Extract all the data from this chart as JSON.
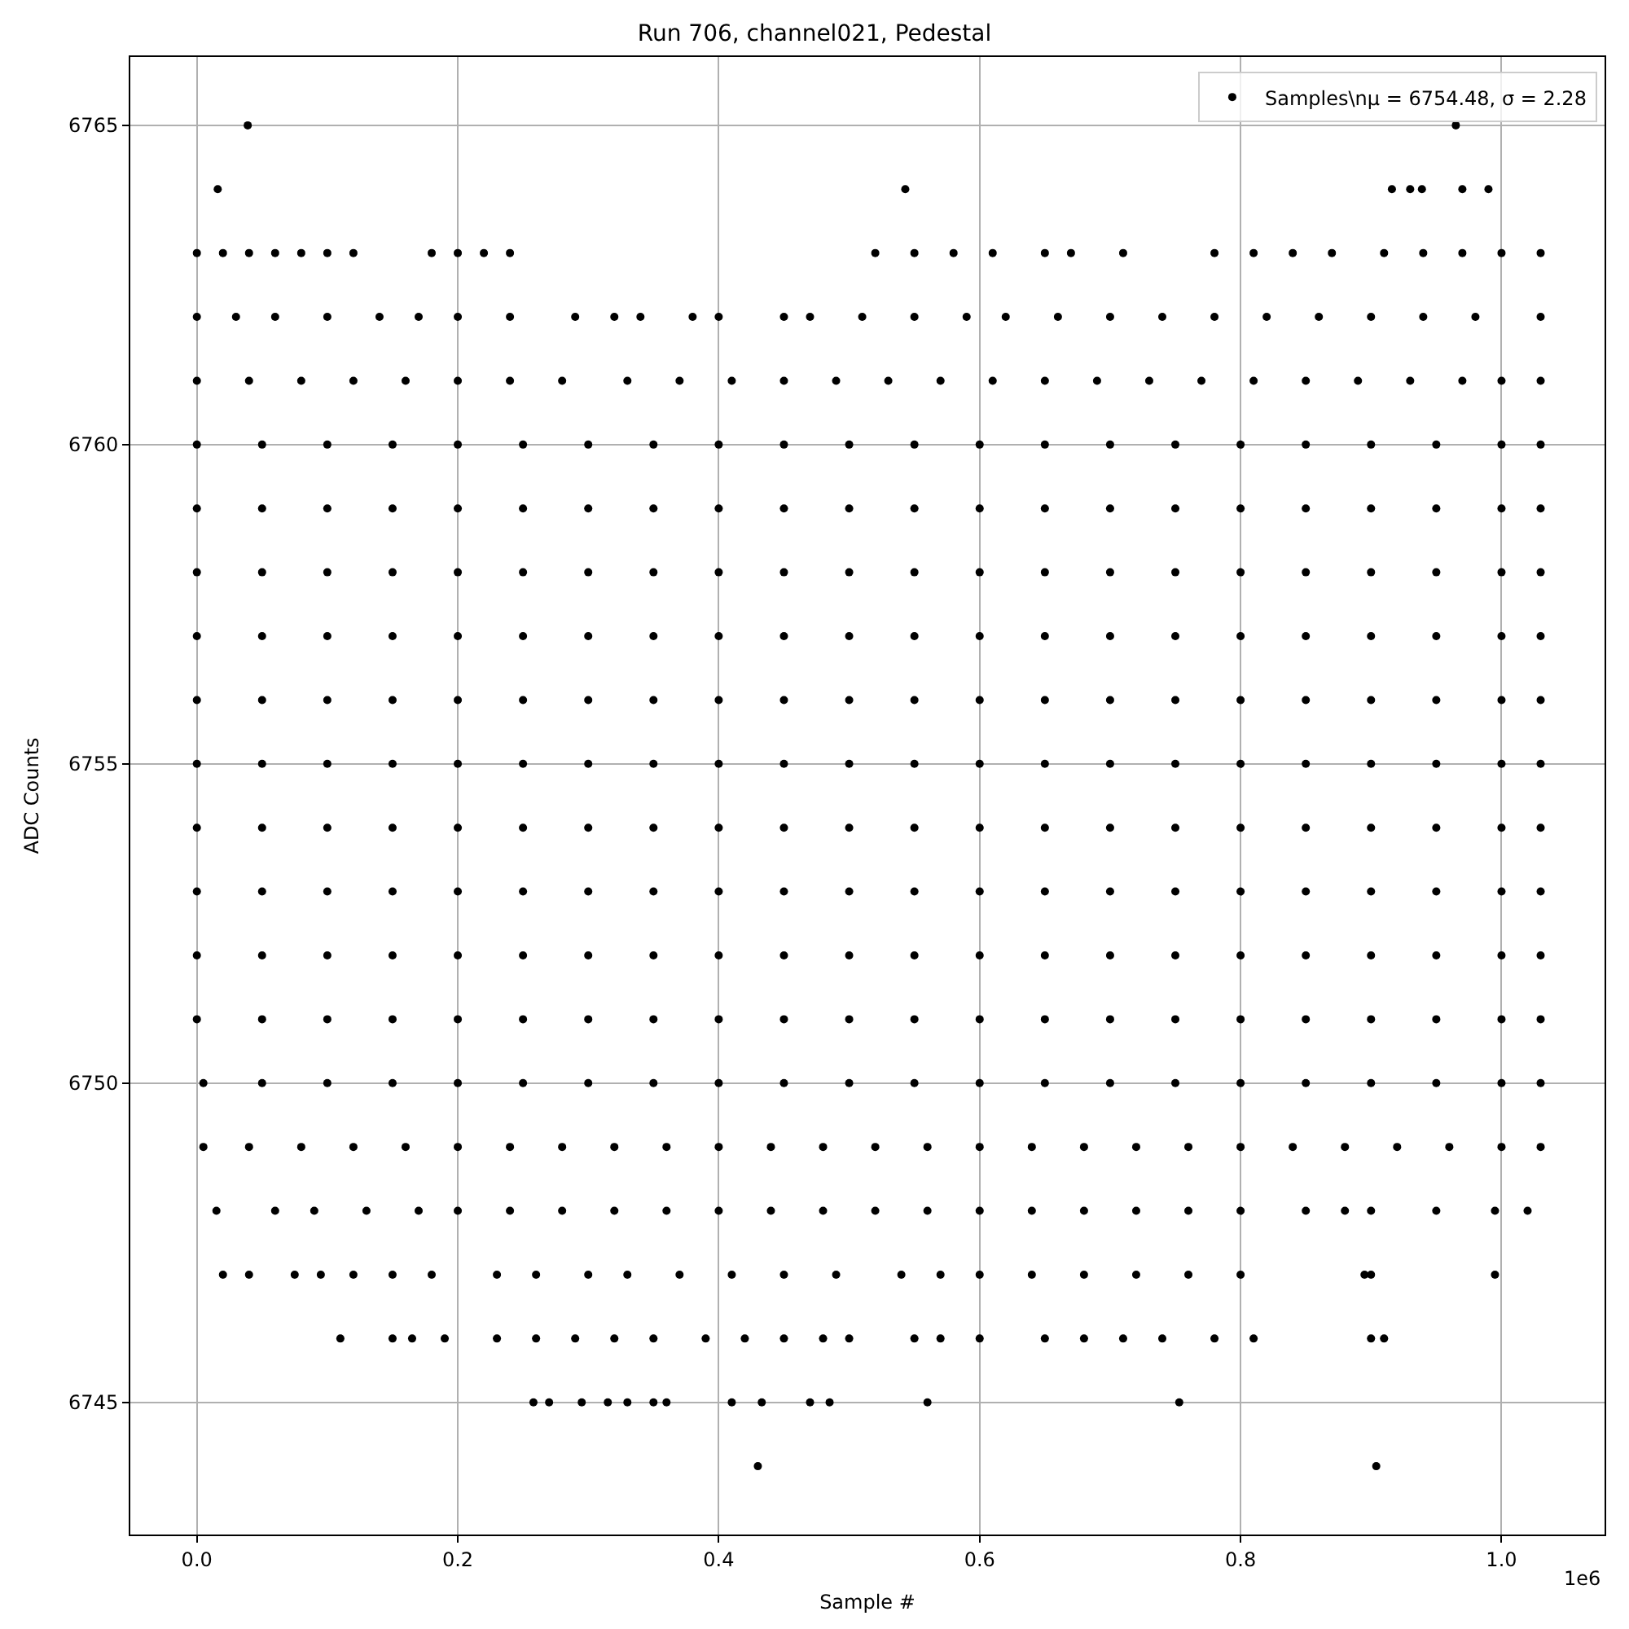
{
  "chart_data": {
    "type": "scatter",
    "title": "Run 706, channel021, Pedestal",
    "xlabel": "Sample #",
    "ylabel": "ADC Counts",
    "annotations": [
      "1e6"
    ],
    "xlim": [
      -0.051,
      1.079
    ],
    "ylim": [
      6742.93,
      6766.07
    ],
    "xticks": [
      {
        "value": 0,
        "label": "0.0"
      },
      0.2,
      0.4,
      0.6,
      0.8,
      {
        "value": 1,
        "label": "1.0"
      }
    ],
    "yticks": [
      6745,
      6750,
      6755,
      6760,
      6765
    ],
    "grid": true,
    "legend": "top right",
    "marker": "circle",
    "series": [
      {
        "name": "Samples\\nμ = 6754.48, σ = 2.28",
        "color": "#000000",
        "x": [
          0.039,
          0.965,
          0.016,
          0.543,
          0.916,
          0.93,
          0.939,
          0.97,
          0.99,
          0,
          0.02,
          0.04,
          0.06,
          0.08,
          0.1,
          0.12,
          0.18,
          0.2,
          0.22,
          0.24,
          0.52,
          0.55,
          0.58,
          0.61,
          0.65,
          0.67,
          0.71,
          0.78,
          0.81,
          0.84,
          0.87,
          0.91,
          0.94,
          0.97,
          1.0,
          1.03,
          0,
          0.03,
          0.06,
          0.1,
          0.14,
          0.17,
          0.2,
          0.24,
          0.29,
          0.32,
          0.34,
          0.38,
          0.4,
          0.45,
          0.47,
          0.51,
          0.55,
          0.59,
          0.62,
          0.66,
          0.7,
          0.74,
          0.78,
          0.82,
          0.86,
          0.9,
          0.94,
          0.98,
          1.03,
          0,
          0.04,
          0.08,
          0.12,
          0.16,
          0.2,
          0.24,
          0.28,
          0.33,
          0.37,
          0.41,
          0.45,
          0.49,
          0.53,
          0.57,
          0.61,
          0.65,
          0.69,
          0.73,
          0.77,
          0.81,
          0.85,
          0.89,
          0.93,
          0.97,
          1.0,
          1.03,
          0,
          0.05,
          0.1,
          0.15,
          0.2,
          0.25,
          0.3,
          0.35,
          0.4,
          0.45,
          0.5,
          0.55,
          0.6,
          0.65,
          0.7,
          0.75,
          0.8,
          0.85,
          0.9,
          0.95,
          1.0,
          1.03,
          0,
          0.05,
          0.1,
          0.15,
          0.2,
          0.25,
          0.3,
          0.35,
          0.4,
          0.45,
          0.5,
          0.55,
          0.6,
          0.65,
          0.7,
          0.75,
          0.8,
          0.85,
          0.9,
          0.95,
          1.0,
          1.03,
          0,
          0.05,
          0.1,
          0.15,
          0.2,
          0.25,
          0.3,
          0.35,
          0.4,
          0.45,
          0.5,
          0.55,
          0.6,
          0.65,
          0.7,
          0.75,
          0.8,
          0.85,
          0.9,
          0.95,
          1.0,
          1.03,
          0,
          0.05,
          0.1,
          0.15,
          0.2,
          0.25,
          0.3,
          0.35,
          0.4,
          0.45,
          0.5,
          0.55,
          0.6,
          0.65,
          0.7,
          0.75,
          0.8,
          0.85,
          0.9,
          0.95,
          1.0,
          1.03,
          0,
          0.05,
          0.1,
          0.15,
          0.2,
          0.25,
          0.3,
          0.35,
          0.4,
          0.45,
          0.5,
          0.55,
          0.6,
          0.65,
          0.7,
          0.75,
          0.8,
          0.85,
          0.9,
          0.95,
          1.0,
          1.03,
          0,
          0.05,
          0.1,
          0.15,
          0.2,
          0.25,
          0.3,
          0.35,
          0.4,
          0.45,
          0.5,
          0.55,
          0.6,
          0.65,
          0.7,
          0.75,
          0.8,
          0.85,
          0.9,
          0.95,
          1.0,
          1.03,
          0,
          0.05,
          0.1,
          0.15,
          0.2,
          0.25,
          0.3,
          0.35,
          0.4,
          0.45,
          0.5,
          0.55,
          0.6,
          0.65,
          0.7,
          0.75,
          0.8,
          0.85,
          0.9,
          0.95,
          1.0,
          1.03,
          0,
          0.05,
          0.1,
          0.15,
          0.2,
          0.25,
          0.3,
          0.35,
          0.4,
          0.45,
          0.5,
          0.55,
          0.6,
          0.65,
          0.7,
          0.75,
          0.8,
          0.85,
          0.9,
          0.95,
          1.0,
          1.03,
          0,
          0.05,
          0.1,
          0.15,
          0.2,
          0.25,
          0.3,
          0.35,
          0.4,
          0.45,
          0.5,
          0.55,
          0.6,
          0.65,
          0.7,
          0.75,
          0.8,
          0.85,
          0.9,
          0.95,
          1.0,
          1.03,
          0,
          0.05,
          0.1,
          0.15,
          0.2,
          0.25,
          0.3,
          0.35,
          0.4,
          0.45,
          0.5,
          0.55,
          0.6,
          0.65,
          0.7,
          0.75,
          0.8,
          0.85,
          0.9,
          0.95,
          1.0,
          1.03,
          0.005,
          0.05,
          0.1,
          0.15,
          0.2,
          0.25,
          0.3,
          0.35,
          0.4,
          0.45,
          0.5,
          0.55,
          0.6,
          0.65,
          0.7,
          0.75,
          0.8,
          0.85,
          0.9,
          0.95,
          1.0,
          1.03,
          0.005,
          0.04,
          0.08,
          0.12,
          0.16,
          0.2,
          0.24,
          0.28,
          0.32,
          0.36,
          0.4,
          0.44,
          0.48,
          0.52,
          0.56,
          0.6,
          0.64,
          0.68,
          0.72,
          0.76,
          0.8,
          0.84,
          0.88,
          0.92,
          0.96,
          1.0,
          1.03,
          0.015,
          0.06,
          0.09,
          0.13,
          0.17,
          0.2,
          0.24,
          0.28,
          0.32,
          0.36,
          0.4,
          0.44,
          0.48,
          0.52,
          0.56,
          0.6,
          0.64,
          0.68,
          0.72,
          0.76,
          0.8,
          0.85,
          0.88,
          0.9,
          0.95,
          0.995,
          1.02,
          0.02,
          0.04,
          0.075,
          0.095,
          0.12,
          0.15,
          0.18,
          0.23,
          0.26,
          0.3,
          0.33,
          0.37,
          0.41,
          0.45,
          0.49,
          0.54,
          0.57,
          0.6,
          0.64,
          0.68,
          0.72,
          0.76,
          0.8,
          0.895,
          0.9,
          0.995,
          0.11,
          0.15,
          0.165,
          0.19,
          0.23,
          0.26,
          0.29,
          0.32,
          0.35,
          0.39,
          0.42,
          0.45,
          0.48,
          0.5,
          0.55,
          0.57,
          0.6,
          0.65,
          0.68,
          0.71,
          0.74,
          0.78,
          0.81,
          0.9,
          0.91,
          0.258,
          0.27,
          0.295,
          0.315,
          0.33,
          0.35,
          0.36,
          0.41,
          0.433,
          0.47,
          0.485,
          0.56,
          0.753,
          0.43,
          0.904
        ],
        "values": [
          6765,
          6765,
          6764,
          6764,
          6764,
          6764,
          6764,
          6764,
          6764,
          6763,
          6763,
          6763,
          6763,
          6763,
          6763,
          6763,
          6763,
          6763,
          6763,
          6763,
          6763,
          6763,
          6763,
          6763,
          6763,
          6763,
          6763,
          6763,
          6763,
          6763,
          6763,
          6763,
          6763,
          6763,
          6763,
          6763,
          6762,
          6762,
          6762,
          6762,
          6762,
          6762,
          6762,
          6762,
          6762,
          6762,
          6762,
          6762,
          6762,
          6762,
          6762,
          6762,
          6762,
          6762,
          6762,
          6762,
          6762,
          6762,
          6762,
          6762,
          6762,
          6762,
          6762,
          6762,
          6762,
          6761,
          6761,
          6761,
          6761,
          6761,
          6761,
          6761,
          6761,
          6761,
          6761,
          6761,
          6761,
          6761,
          6761,
          6761,
          6761,
          6761,
          6761,
          6761,
          6761,
          6761,
          6761,
          6761,
          6761,
          6761,
          6761,
          6761,
          6760,
          6760,
          6760,
          6760,
          6760,
          6760,
          6760,
          6760,
          6760,
          6760,
          6760,
          6760,
          6760,
          6760,
          6760,
          6760,
          6760,
          6760,
          6760,
          6760,
          6760,
          6760,
          6759,
          6759,
          6759,
          6759,
          6759,
          6759,
          6759,
          6759,
          6759,
          6759,
          6759,
          6759,
          6759,
          6759,
          6759,
          6759,
          6759,
          6759,
          6759,
          6759,
          6759,
          6759,
          6758,
          6758,
          6758,
          6758,
          6758,
          6758,
          6758,
          6758,
          6758,
          6758,
          6758,
          6758,
          6758,
          6758,
          6758,
          6758,
          6758,
          6758,
          6758,
          6758,
          6758,
          6758,
          6757,
          6757,
          6757,
          6757,
          6757,
          6757,
          6757,
          6757,
          6757,
          6757,
          6757,
          6757,
          6757,
          6757,
          6757,
          6757,
          6757,
          6757,
          6757,
          6757,
          6757,
          6757,
          6756,
          6756,
          6756,
          6756,
          6756,
          6756,
          6756,
          6756,
          6756,
          6756,
          6756,
          6756,
          6756,
          6756,
          6756,
          6756,
          6756,
          6756,
          6756,
          6756,
          6756,
          6756,
          6755,
          6755,
          6755,
          6755,
          6755,
          6755,
          6755,
          6755,
          6755,
          6755,
          6755,
          6755,
          6755,
          6755,
          6755,
          6755,
          6755,
          6755,
          6755,
          6755,
          6755,
          6755,
          6754,
          6754,
          6754,
          6754,
          6754,
          6754,
          6754,
          6754,
          6754,
          6754,
          6754,
          6754,
          6754,
          6754,
          6754,
          6754,
          6754,
          6754,
          6754,
          6754,
          6754,
          6754,
          6753,
          6753,
          6753,
          6753,
          6753,
          6753,
          6753,
          6753,
          6753,
          6753,
          6753,
          6753,
          6753,
          6753,
          6753,
          6753,
          6753,
          6753,
          6753,
          6753,
          6753,
          6753,
          6752,
          6752,
          6752,
          6752,
          6752,
          6752,
          6752,
          6752,
          6752,
          6752,
          6752,
          6752,
          6752,
          6752,
          6752,
          6752,
          6752,
          6752,
          6752,
          6752,
          6752,
          6752,
          6751,
          6751,
          6751,
          6751,
          6751,
          6751,
          6751,
          6751,
          6751,
          6751,
          6751,
          6751,
          6751,
          6751,
          6751,
          6751,
          6751,
          6751,
          6751,
          6751,
          6751,
          6751,
          6750,
          6750,
          6750,
          6750,
          6750,
          6750,
          6750,
          6750,
          6750,
          6750,
          6750,
          6750,
          6750,
          6750,
          6750,
          6750,
          6750,
          6750,
          6750,
          6750,
          6750,
          6750,
          6749,
          6749,
          6749,
          6749,
          6749,
          6749,
          6749,
          6749,
          6749,
          6749,
          6749,
          6749,
          6749,
          6749,
          6749,
          6749,
          6749,
          6749,
          6749,
          6749,
          6749,
          6749,
          6749,
          6749,
          6749,
          6749,
          6749,
          6748,
          6748,
          6748,
          6748,
          6748,
          6748,
          6748,
          6748,
          6748,
          6748,
          6748,
          6748,
          6748,
          6748,
          6748,
          6748,
          6748,
          6748,
          6748,
          6748,
          6748,
          6748,
          6748,
          6748,
          6748,
          6748,
          6748,
          6747,
          6747,
          6747,
          6747,
          6747,
          6747,
          6747,
          6747,
          6747,
          6747,
          6747,
          6747,
          6747,
          6747,
          6747,
          6747,
          6747,
          6747,
          6747,
          6747,
          6747,
          6747,
          6747,
          6747,
          6747,
          6747,
          6746,
          6746,
          6746,
          6746,
          6746,
          6746,
          6746,
          6746,
          6746,
          6746,
          6746,
          6746,
          6746,
          6746,
          6746,
          6746,
          6746,
          6746,
          6746,
          6746,
          6746,
          6746,
          6746,
          6746,
          6746,
          6745,
          6745,
          6745,
          6745,
          6745,
          6745,
          6745,
          6745,
          6745,
          6745,
          6745,
          6745,
          6745,
          6744,
          6744
        ]
      }
    ]
  }
}
